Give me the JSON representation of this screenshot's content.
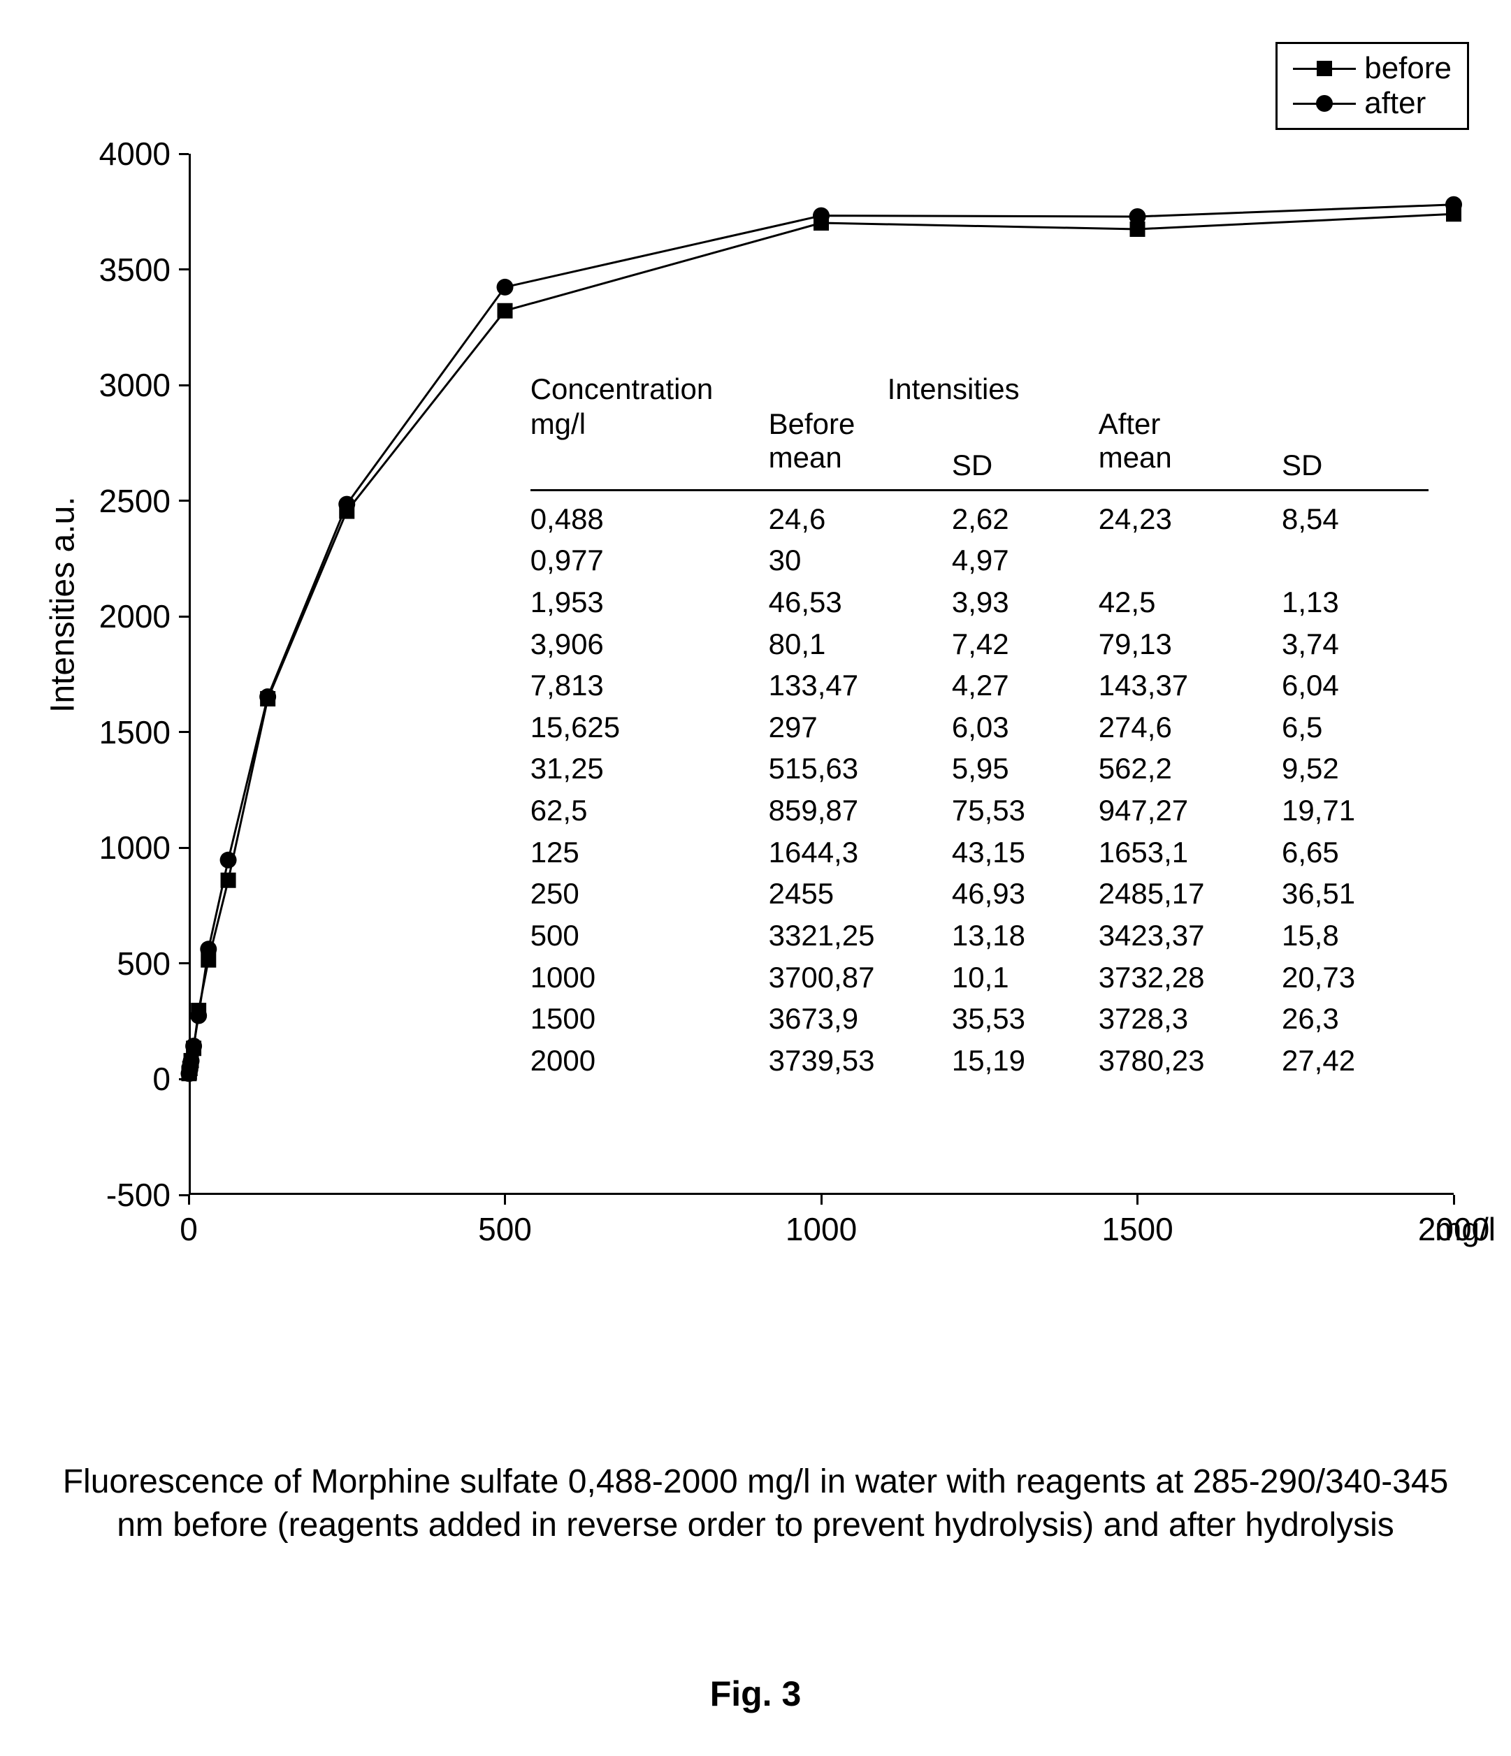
{
  "chart": {
    "type": "line",
    "background_color": "#ffffff",
    "line_color": "#000000",
    "line_width": 3,
    "marker_size": 22,
    "xlim": [
      0,
      2000
    ],
    "ylim": [
      -500,
      4000
    ],
    "x_ticks": [
      0,
      500,
      1000,
      1500,
      2000
    ],
    "y_ticks": [
      -500,
      0,
      500,
      1000,
      1500,
      2000,
      2500,
      3000,
      3500,
      4000
    ],
    "x_unit": "mg/l",
    "y_label": "Intensities  a.u.",
    "tick_fontsize": 46,
    "label_fontsize": 48,
    "legend": {
      "items": [
        {
          "label": "before",
          "marker": "square"
        },
        {
          "label": "after",
          "marker": "circle"
        }
      ],
      "border_color": "#000000",
      "fontsize": 44
    },
    "series": {
      "before": {
        "marker": "square",
        "color": "#000000",
        "x": [
          0.488,
          0.977,
          1.953,
          3.906,
          7.813,
          15.625,
          31.25,
          62.5,
          125,
          250,
          500,
          1000,
          1500,
          2000
        ],
        "y": [
          24.6,
          30,
          46.53,
          80.1,
          133.47,
          297,
          515.63,
          859.87,
          1644.3,
          2455,
          3321.25,
          3700.87,
          3673.9,
          3739.53
        ]
      },
      "after": {
        "marker": "circle",
        "color": "#000000",
        "x": [
          0.488,
          1.953,
          3.906,
          7.813,
          15.625,
          31.25,
          62.5,
          125,
          250,
          500,
          1000,
          1500,
          2000
        ],
        "y": [
          24.23,
          42.5,
          79.13,
          143.37,
          274.6,
          562.2,
          947.27,
          1653.1,
          2485.17,
          3423.37,
          3732.28,
          3728.3,
          3780.23
        ]
      }
    }
  },
  "table": {
    "super_headers": [
      "Concentration",
      "Intensities"
    ],
    "headers": [
      "mg/l",
      "Before mean",
      "SD",
      "After mean",
      "SD"
    ],
    "fontsize": 42,
    "rows": [
      [
        "0,488",
        "24,6",
        "2,62",
        "24,23",
        "8,54"
      ],
      [
        "0,977",
        "30",
        "4,97",
        "",
        ""
      ],
      [
        "1,953",
        "46,53",
        "3,93",
        "42,5",
        "1,13"
      ],
      [
        "3,906",
        "80,1",
        "7,42",
        "79,13",
        "3,74"
      ],
      [
        "7,813",
        "133,47",
        "4,27",
        "143,37",
        "6,04"
      ],
      [
        "15,625",
        "297",
        "6,03",
        "274,6",
        "6,5"
      ],
      [
        "31,25",
        "515,63",
        "5,95",
        "562,2",
        "9,52"
      ],
      [
        "62,5",
        "859,87",
        "75,53",
        "947,27",
        "19,71"
      ],
      [
        "125",
        "1644,3",
        "43,15",
        "1653,1",
        "6,65"
      ],
      [
        "250",
        "2455",
        "46,93",
        "2485,17",
        "36,51"
      ],
      [
        "500",
        "3321,25",
        "13,18",
        "3423,37",
        "15,8"
      ],
      [
        "1000",
        "3700,87",
        "10,1",
        "3732,28",
        "20,73"
      ],
      [
        "1500",
        "3673,9",
        "35,53",
        "3728,3",
        "26,3"
      ],
      [
        "2000",
        "3739,53",
        "15,19",
        "3780,23",
        "27,42"
      ]
    ]
  },
  "caption": "Fluorescence of Morphine sulfate 0,488-2000 mg/l in water with  reagents at 285-290/340-345 nm before (reagents added in reverse order to prevent hydrolysis) and after hydrolysis",
  "figure_number": "Fig. 3"
}
